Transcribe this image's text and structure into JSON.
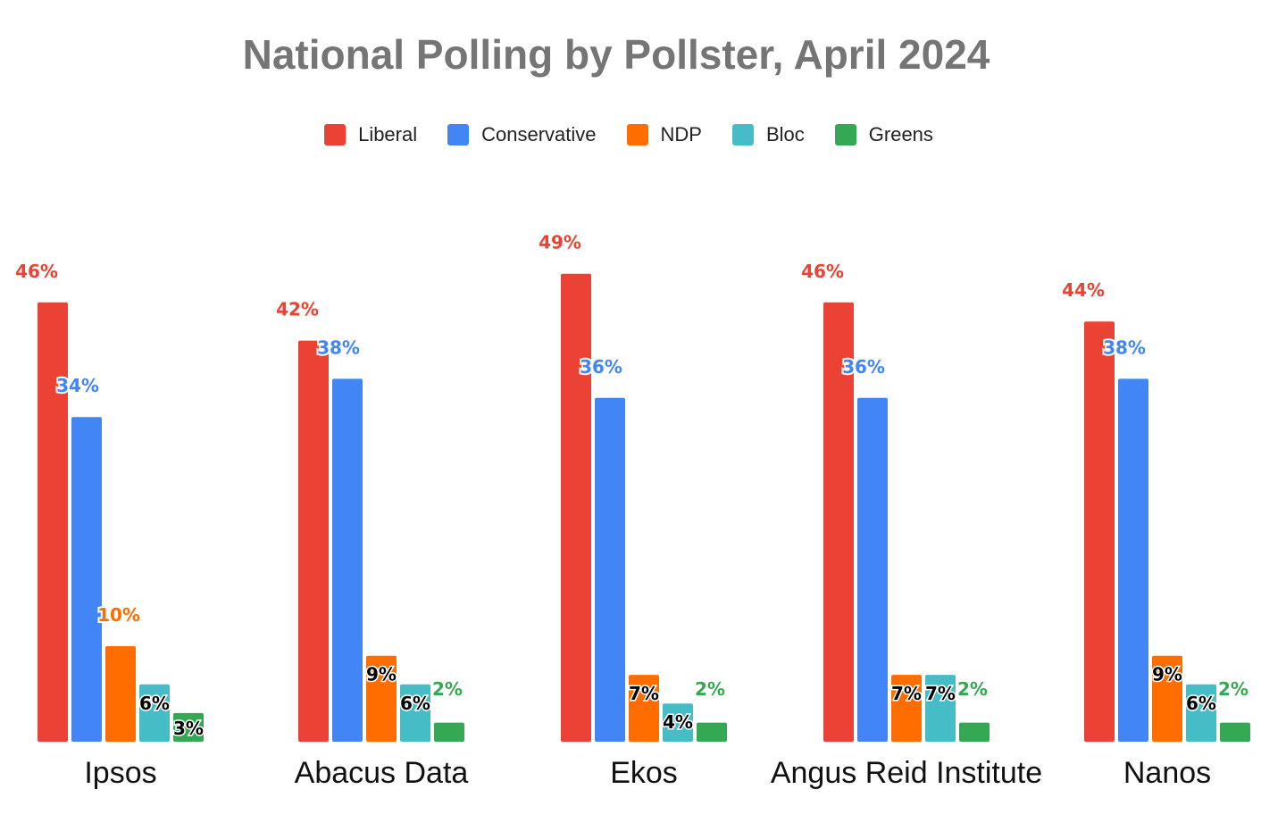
{
  "chart_data": {
    "type": "bar",
    "title": "National Polling by Pollster, April 2024",
    "categories": [
      "Ipsos",
      "Abacus Data",
      "Ekos",
      "Angus Reid Institute",
      "Nanos"
    ],
    "series": [
      {
        "name": "Liberal",
        "color": "#EA4335",
        "values": [
          46,
          42,
          49,
          46,
          44
        ],
        "labels": [
          "46%",
          "42%",
          "49%",
          "46%",
          "44%"
        ]
      },
      {
        "name": "Conservative",
        "color": "#4285F4",
        "values": [
          34,
          38,
          36,
          36,
          38
        ],
        "labels": [
          "34%",
          "38%",
          "36%",
          "36%",
          "38%"
        ]
      },
      {
        "name": "NDP",
        "color": "#FF6D01",
        "values": [
          10,
          9,
          7,
          7,
          9
        ],
        "labels": [
          "10%",
          "9%",
          "7%",
          "7%",
          "9%"
        ]
      },
      {
        "name": "Bloc",
        "color": "#46BDC6",
        "values": [
          6,
          6,
          4,
          7,
          6
        ],
        "labels": [
          "6%",
          "6%",
          "4%",
          "7%",
          "6%"
        ]
      },
      {
        "name": "Greens",
        "color": "#34A853",
        "values": [
          3,
          2,
          2,
          2,
          2
        ],
        "labels": [
          "3%",
          "2%",
          "2%",
          "2%",
          "2%"
        ]
      }
    ],
    "ylim": [
      0,
      50
    ],
    "grid": false,
    "legend_position": "top"
  }
}
